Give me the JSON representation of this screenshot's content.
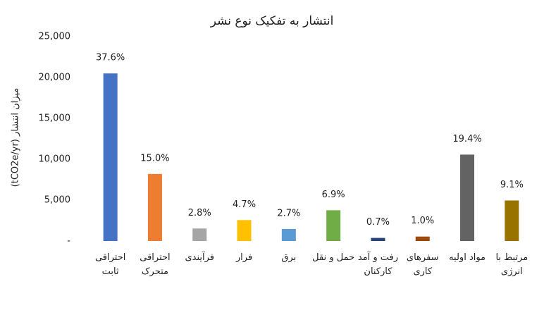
{
  "chart_data": {
    "type": "bar",
    "title": "انتشار به تفکیک نوع نشر",
    "y_label": "میزان انتشار (tCO2e/yr)",
    "categories": [
      "احتراقی ثابت",
      "احتراقی متحرک",
      "فرآیندی",
      "فرار",
      "برق",
      "حمل و نقل",
      "رفت و آمد کارکنان",
      "سفرهای کاری",
      "مواد اولیه",
      "مرتبط با انرژی"
    ],
    "values": [
      20500,
      8200,
      1530,
      2560,
      1470,
      3760,
      380,
      545,
      10570,
      4960
    ],
    "share_labels": [
      "37.6%",
      "15.0%",
      "2.8%",
      "4.7%",
      "2.7%",
      "6.9%",
      "0.7%",
      "1.0%",
      "19.4%",
      "9.1%"
    ],
    "colors": [
      "#4472c4",
      "#ed7d31",
      "#a5a5a5",
      "#ffc000",
      "#5b9bd5",
      "#70ad47",
      "#264478",
      "#9e480e",
      "#636363",
      "#997300"
    ],
    "ylim": [
      0,
      25000
    ],
    "yticks": [
      {
        "value": 0,
        "label": "-"
      },
      {
        "value": 5000,
        "label": "5,000"
      },
      {
        "value": 10000,
        "label": "10,000"
      },
      {
        "value": 15000,
        "label": "15,000"
      },
      {
        "value": 20000,
        "label": "20,000"
      },
      {
        "value": 25000,
        "label": "25,000"
      }
    ],
    "grid": false
  }
}
